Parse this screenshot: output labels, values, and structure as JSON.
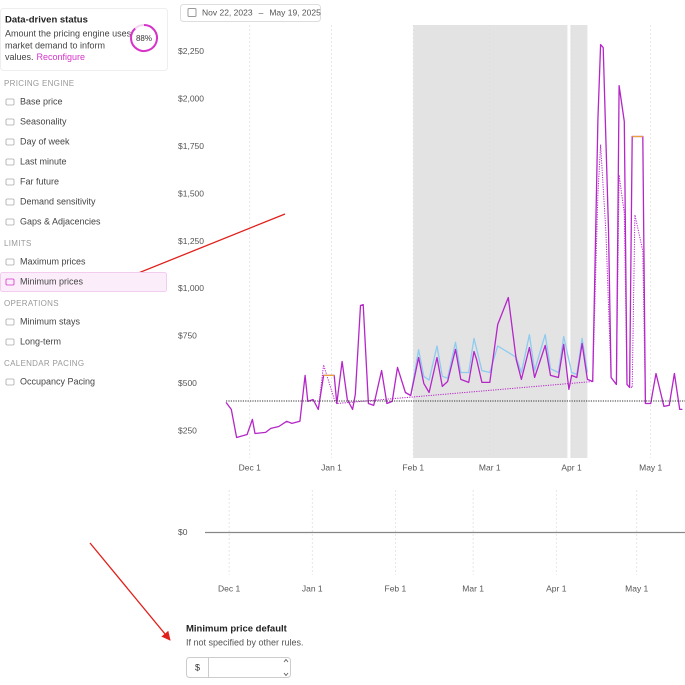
{
  "status": {
    "title": "Data-driven status",
    "lines": [
      "Amount the pricing engine uses",
      "market demand to inform"
    ],
    "tail": "values.",
    "link": "Reconfigure",
    "percent": 88,
    "percent_label": "88%"
  },
  "sections": [
    {
      "heading": "PRICING ENGINE",
      "items": [
        "Base price",
        "Seasonality",
        "Day of week",
        "Last minute",
        "Far future",
        "Demand sensitivity",
        "Gaps & Adjacencies"
      ]
    },
    {
      "heading": "LIMITS",
      "items": [
        "Maximum prices",
        "Minimum prices"
      ]
    },
    {
      "heading": "OPERATIONS",
      "items": [
        "Minimum stays",
        "Long-term"
      ]
    },
    {
      "heading": "CALENDAR PACING",
      "items": [
        "Occupancy Pacing"
      ]
    }
  ],
  "active_item": "Minimum prices",
  "date_range": {
    "start": "Nov 22, 2023",
    "separator": "–",
    "end": "May 19, 2025"
  },
  "chart_data": [
    {
      "type": "line",
      "xlim": [
        "Nov 22",
        "May 14"
      ],
      "xticks": [
        "Dec 1",
        "Jan 1",
        "Feb 1",
        "Mar 1",
        "Apr 1",
        "May 1"
      ],
      "ylim": [
        110,
        2390
      ],
      "yticks": [
        {
          "value": 250,
          "label": "$250"
        },
        {
          "value": 500,
          "label": "$500"
        },
        {
          "value": 750,
          "label": "$750"
        },
        {
          "value": 1000,
          "label": "$1,000"
        },
        {
          "value": 1250,
          "label": "$1,250"
        },
        {
          "value": 1500,
          "label": "$1,500"
        },
        {
          "value": 1750,
          "label": "$1,750"
        },
        {
          "value": 2000,
          "label": "$2,000"
        },
        {
          "value": 2250,
          "label": "$2,250"
        }
      ],
      "highlight": {
        "from": "Feb 1",
        "to": "Apr 7",
        "color": "#e3e3e3"
      },
      "marker": {
        "x": "Mar 31",
        "color": "#ffffff"
      },
      "series": [
        {
          "color": "#8ecbf0",
          "style": "solid",
          "x": [
            "Jan 31",
            "Feb 3",
            "Feb 5",
            "Feb 7",
            "Feb 10",
            "Feb 12",
            "Feb 14",
            "Feb 17",
            "Feb 19",
            "Feb 22",
            "Feb 24",
            "Feb 27",
            "Mar 1",
            "Mar 4",
            "Mar 11",
            "Mar 13",
            "Mar 16",
            "Mar 18",
            "Mar 22",
            "Mar 24",
            "Mar 27",
            "Mar 29",
            "Apr 1",
            "Apr 3",
            "Apr 5",
            "Apr 7"
          ],
          "values": [
            439,
            680,
            540,
            520,
            700,
            540,
            530,
            720,
            560,
            560,
            740,
            570,
            560,
            700,
            640,
            560,
            760,
            570,
            760,
            580,
            560,
            750,
            560,
            550,
            740,
            560
          ]
        },
        {
          "color": "#b526c8",
          "style": "dotted",
          "x": [
            "Dec 27",
            "Dec 29",
            "Jan 2",
            "Jan 3",
            "Apr 9",
            "Apr 11",
            "Apr 12",
            "Apr 14",
            "Apr 16",
            "Apr 18",
            "Apr 19",
            "Apr 21",
            "Apr 22",
            "Apr 24",
            "Apr 25",
            "Apr 28",
            "Apr 29"
          ],
          "values": [
            366,
            600,
            420,
            397,
            513,
            1500,
            1760,
            1300,
            534,
            497,
            1600,
            1400,
            497,
            480,
            1390,
            1200,
            397
          ]
        },
        {
          "color": "#b526c8",
          "style": "solid",
          "x": [
            "Nov 22",
            "Nov 24",
            "Nov 26",
            "Nov 30",
            "Dec 2",
            "Dec 3",
            "Dec 7",
            "Dec 9",
            "Dec 12",
            "Dec 15",
            "Dec 17",
            "Dec 20",
            "Dec 22",
            "Dec 23",
            "Dec 25",
            "Dec 27",
            "Dec 29",
            "Jan 2",
            "Jan 3",
            "Jan 5",
            "Jan 7",
            "Jan 9",
            "Jan 10",
            "Jan 12",
            "Jan 13",
            "Jan 15",
            "Jan 17",
            "Jan 20",
            "Jan 22",
            "Jan 24",
            "Jan 26",
            "Jan 29",
            "Jan 31",
            "Feb 3",
            "Feb 5",
            "Feb 7",
            "Feb 10",
            "Feb 12",
            "Feb 14",
            "Feb 17",
            "Feb 19",
            "Feb 22",
            "Feb 24",
            "Feb 25",
            "Feb 27",
            "Mar 1",
            "Mar 4",
            "Mar 8",
            "Mar 11",
            "Mar 13",
            "Mar 16",
            "Mar 18",
            "Mar 22",
            "Mar 24",
            "Mar 27",
            "Mar 29",
            "Mar 31",
            "Apr 1",
            "Apr 3",
            "Apr 5",
            "Apr 7",
            "Apr 9",
            "Apr 11",
            "Apr 12",
            "Apr 13",
            "Apr 15",
            "Apr 16",
            "Apr 18",
            "Apr 19",
            "Apr 21",
            "Apr 22",
            "Apr 23",
            "Apr 24",
            "Apr 28",
            "Apr 29",
            "May 1",
            "May 3",
            "May 6",
            "May 8",
            "May 10",
            "May 12",
            "May 13"
          ],
          "values": [
            403,
            366,
            218,
            234,
            313,
            239,
            245,
            266,
            276,
            303,
            292,
            303,
            545,
            408,
            418,
            366,
            545,
            545,
            397,
            618,
            418,
            366,
            445,
            913,
            918,
            397,
            387,
            571,
            397,
            408,
            587,
            455,
            439,
            639,
            503,
            455,
            639,
            487,
            513,
            682,
            524,
            508,
            671,
            629,
            508,
            508,
            813,
            955,
            629,
            524,
            692,
            534,
            703,
            545,
            534,
            708,
            471,
            545,
            534,
            713,
            524,
            513,
            1892,
            2287,
            2271,
            1313,
            534,
            497,
            2071,
            1882,
            497,
            482,
            1803,
            1803,
            397,
            397,
            555,
            382,
            387,
            555,
            366,
            366
          ]
        },
        {
          "color": "#e8a33a",
          "style": "solid",
          "x": [
            "Dec 29",
            "Jan 2",
            "Jan 3",
            "Apr 24",
            "Apr 28"
          ],
          "values": [
            545,
            545,
            null,
            1803,
            1803
          ]
        },
        {
          "color": "#333333",
          "style": "dotted",
          "x": [
            "Nov 22",
            "May 14"
          ],
          "values": [
            410,
            410
          ]
        }
      ]
    },
    {
      "type": "line",
      "xlim": [
        "Nov 22",
        "May 19"
      ],
      "xticks": [
        "Dec 1",
        "Jan 1",
        "Feb 1",
        "Mar 1",
        "Apr 1",
        "May 1"
      ],
      "ylim": [
        -1,
        1
      ],
      "yticks": [
        {
          "value": 0,
          "label": "$0"
        }
      ],
      "series": [
        {
          "color": "#888888",
          "style": "solid",
          "x": [
            "Nov 22",
            "May 19"
          ],
          "values": [
            0,
            0
          ]
        }
      ]
    }
  ],
  "form": {
    "title": "Minimum price default",
    "hint": "If not specified by other rules.",
    "currency": "$"
  }
}
